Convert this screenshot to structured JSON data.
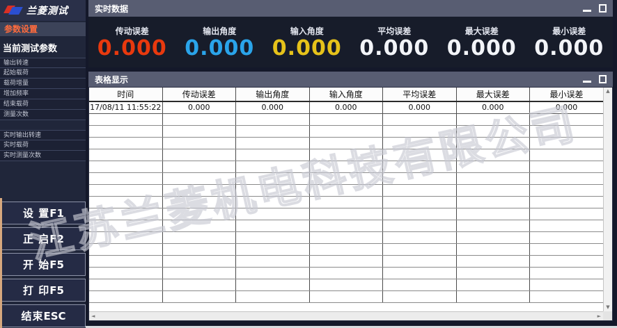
{
  "app": {
    "logo_text": "兰菱测试",
    "accent_color": "#ff6b3d"
  },
  "sidebar": {
    "section1_title": "参数设置",
    "section2_title": "当前测试参数",
    "param_items": [
      "输出转速",
      "起始载荷",
      "载荷增量",
      "增加频率",
      "结束载荷",
      "测量次数"
    ],
    "realtime_items": [
      "实时输出转速",
      "实时载荷",
      "实时测量次数"
    ],
    "buttons": [
      {
        "label": "设 置",
        "key": "F1"
      },
      {
        "label": "正 启",
        "key": "F2"
      },
      {
        "label": "开 始",
        "key": "F5"
      },
      {
        "label": "打 印",
        "key": "F5"
      },
      {
        "label": "结束",
        "key": "ESC"
      }
    ]
  },
  "realtime_panel": {
    "title": "实时数据",
    "metrics": [
      {
        "label": "传动误差",
        "value": "0.000",
        "color": "#e8390e"
      },
      {
        "label": "输出角度",
        "value": "0.000",
        "color": "#2aa4ea"
      },
      {
        "label": "输入角度",
        "value": "0.000",
        "color": "#e6c21a"
      },
      {
        "label": "平均误差",
        "value": "0.000",
        "color": "#f2f4f8"
      },
      {
        "label": "最大误差",
        "value": "0.000",
        "color": "#f2f4f8"
      },
      {
        "label": "最小误差",
        "value": "0.000",
        "color": "#f2f4f8"
      }
    ]
  },
  "table_panel": {
    "title": "表格显示",
    "columns": [
      "时间",
      "传动误差",
      "输出角度",
      "输入角度",
      "平均误差",
      "最大误差",
      "最小误差"
    ],
    "rows": [
      [
        "17/08/11 11:55:22",
        "0.000",
        "0.000",
        "0.000",
        "0.000",
        "0.000",
        "0.000"
      ]
    ],
    "empty_row_count": 16
  },
  "icons": {
    "scroll_up": "▲",
    "scroll_down": "▼",
    "scroll_left": "◄",
    "scroll_right": "►"
  },
  "watermark": {
    "text": "江苏兰菱机电科技有限公司"
  }
}
